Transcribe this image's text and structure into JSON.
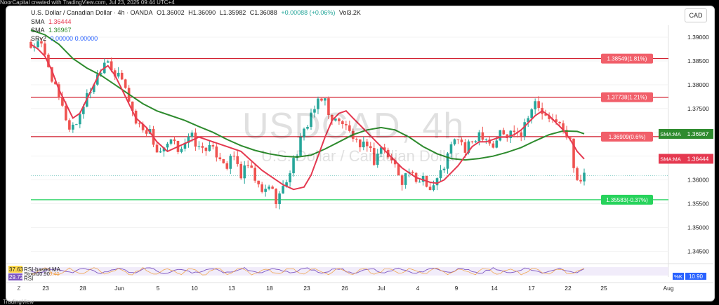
{
  "header": {
    "credit": "NoorCapital created with TradingView.com, Jul 23, 2025 09:44 UTC+4",
    "currency_button": "CAD",
    "footer_logo": "TradingView"
  },
  "legend": {
    "symbol": "U.S. Dollar / Canadian Dollar · 4h · OANDA",
    "o": "O1.36002",
    "h": "H1.36090",
    "l": "L1.35982",
    "c": "C1.36088",
    "chg": "+0.00088 (+0.06%)",
    "vol": "Vol3.2K",
    "sma1_label": "SMA",
    "sma1_value": "1.36444",
    "sma2_label": "SMA",
    "sma2_value": "1.36967",
    "srv_label": "SRv2",
    "srv_values": "0.00000  0.00000"
  },
  "watermark": {
    "big": "USDCAD, 4h",
    "small": "U.S. Dollar / Canadian Dollar"
  },
  "colors": {
    "up": "#26a69a",
    "down": "#ef5350",
    "sma_fast": "#e53950",
    "sma_slow": "#2e8b2e",
    "resistance": "#d11f2e",
    "support": "#1fd15a",
    "rsi": "#7e57c2"
  },
  "chart_data": {
    "type": "candlestick",
    "ylim": [
      1.343,
      1.3925
    ],
    "y_ticks": [
      "1.39000",
      "1.38500",
      "1.38000",
      "1.37500",
      "1.37000",
      "1.36500",
      "1.36000",
      "1.35500",
      "1.35000",
      "1.34500"
    ],
    "x_ticks": [
      "23",
      "28",
      "Jun",
      "5",
      "10",
      "13",
      "18",
      "23",
      "26",
      "Jul",
      "4",
      "9",
      "14",
      "17",
      "22",
      "25",
      "Aug"
    ],
    "levels": [
      {
        "label": "1.38549 (1.81%)",
        "price": 1.38549,
        "kind": "resistance"
      },
      {
        "label": "1.37738 (1.21%)",
        "price": 1.37738,
        "kind": "resistance"
      },
      {
        "label": "1.36909 (0.6%)",
        "price": 1.36909,
        "kind": "resistance"
      },
      {
        "label": "1.35583 (-0.37%)",
        "price": 1.35583,
        "kind": "support"
      }
    ],
    "price_tags": [
      {
        "label": "SMA:MA",
        "value": "1.36967",
        "price": 1.36967,
        "kind": "sma_slow"
      },
      {
        "label": "SMA:MA",
        "value": "1.36444",
        "price": 1.36444,
        "kind": "sma_fast"
      }
    ],
    "sma_fast_path": [
      [
        0,
        1.3885
      ],
      [
        2,
        1.3875
      ],
      [
        4,
        1.386
      ],
      [
        6,
        1.383
      ],
      [
        8,
        1.379
      ],
      [
        10,
        1.376
      ],
      [
        12,
        1.373
      ],
      [
        14,
        1.374
      ],
      [
        16,
        1.377
      ],
      [
        18,
        1.38
      ],
      [
        20,
        1.383
      ],
      [
        22,
        1.384
      ],
      [
        24,
        1.382
      ],
      [
        26,
        1.379
      ],
      [
        28,
        1.376
      ],
      [
        30,
        1.373
      ],
      [
        33,
        1.371
      ],
      [
        36,
        1.368
      ],
      [
        39,
        1.366
      ],
      [
        42,
        1.367
      ],
      [
        45,
        1.368
      ],
      [
        48,
        1.369
      ],
      [
        52,
        1.368
      ],
      [
        56,
        1.367
      ],
      [
        60,
        1.366
      ],
      [
        63,
        1.364
      ],
      [
        66,
        1.362
      ],
      [
        69,
        1.3605
      ],
      [
        72,
        1.359
      ],
      [
        75,
        1.358
      ],
      [
        78,
        1.3585
      ],
      [
        80,
        1.361
      ],
      [
        82,
        1.365
      ],
      [
        84,
        1.369
      ],
      [
        86,
        1.3725
      ],
      [
        88,
        1.374
      ],
      [
        90,
        1.3745
      ],
      [
        92,
        1.373
      ],
      [
        94,
        1.3715
      ],
      [
        96,
        1.37
      ],
      [
        98,
        1.3685
      ],
      [
        100,
        1.367
      ],
      [
        102,
        1.3655
      ],
      [
        104,
        1.364
      ],
      [
        106,
        1.3625
      ],
      [
        108,
        1.3615
      ],
      [
        110,
        1.3605
      ],
      [
        112,
        1.36
      ],
      [
        114,
        1.3595
      ],
      [
        116,
        1.3593
      ],
      [
        118,
        1.36
      ],
      [
        120,
        1.3615
      ],
      [
        122,
        1.363
      ],
      [
        124,
        1.365
      ],
      [
        126,
        1.367
      ],
      [
        128,
        1.368
      ],
      [
        130,
        1.368
      ],
      [
        132,
        1.3685
      ],
      [
        134,
        1.369
      ],
      [
        136,
        1.369
      ],
      [
        138,
        1.3695
      ],
      [
        140,
        1.3705
      ],
      [
        142,
        1.372
      ],
      [
        144,
        1.3735
      ],
      [
        146,
        1.3745
      ],
      [
        148,
        1.3735
      ],
      [
        150,
        1.372
      ],
      [
        152,
        1.3705
      ],
      [
        154,
        1.3685
      ],
      [
        156,
        1.366
      ],
      [
        158,
        1.3644
      ]
    ],
    "sma_slow_path": [
      [
        0,
        1.3915
      ],
      [
        4,
        1.3905
      ],
      [
        8,
        1.3885
      ],
      [
        12,
        1.3855
      ],
      [
        16,
        1.3835
      ],
      [
        20,
        1.382
      ],
      [
        24,
        1.38
      ],
      [
        28,
        1.378
      ],
      [
        32,
        1.376
      ],
      [
        36,
        1.3745
      ],
      [
        40,
        1.3735
      ],
      [
        44,
        1.3725
      ],
      [
        48,
        1.3712
      ],
      [
        52,
        1.37
      ],
      [
        56,
        1.3685
      ],
      [
        60,
        1.3672
      ],
      [
        64,
        1.3662
      ],
      [
        68,
        1.3655
      ],
      [
        72,
        1.365
      ],
      [
        76,
        1.3648
      ],
      [
        80,
        1.3652
      ],
      [
        84,
        1.3665
      ],
      [
        88,
        1.368
      ],
      [
        92,
        1.3695
      ],
      [
        96,
        1.3705
      ],
      [
        100,
        1.371
      ],
      [
        104,
        1.3705
      ],
      [
        108,
        1.369
      ],
      [
        112,
        1.367
      ],
      [
        116,
        1.3655
      ],
      [
        120,
        1.3645
      ],
      [
        124,
        1.3642
      ],
      [
        128,
        1.3645
      ],
      [
        132,
        1.365
      ],
      [
        136,
        1.3658
      ],
      [
        140,
        1.3668
      ],
      [
        144,
        1.3682
      ],
      [
        148,
        1.3695
      ],
      [
        152,
        1.3703
      ],
      [
        156,
        1.3702
      ],
      [
        158,
        1.3697
      ]
    ],
    "close_path": [
      [
        0,
        1.388
      ],
      [
        2,
        1.3885
      ],
      [
        3,
        1.388
      ],
      [
        5,
        1.384
      ],
      [
        7,
        1.379
      ],
      [
        9,
        1.375
      ],
      [
        11,
        1.371
      ],
      [
        13,
        1.372
      ],
      [
        15,
        1.376
      ],
      [
        17,
        1.379
      ],
      [
        19,
        1.382
      ],
      [
        21,
        1.385
      ],
      [
        22,
        1.3855
      ],
      [
        24,
        1.382
      ],
      [
        26,
        1.381
      ],
      [
        28,
        1.377
      ],
      [
        30,
        1.372
      ],
      [
        32,
        1.371
      ],
      [
        34,
        1.37
      ],
      [
        36,
        1.366
      ],
      [
        38,
        1.366
      ],
      [
        40,
        1.368
      ],
      [
        42,
        1.3665
      ],
      [
        44,
        1.368
      ],
      [
        46,
        1.369
      ],
      [
        48,
        1.3665
      ],
      [
        50,
        1.367
      ],
      [
        52,
        1.366
      ],
      [
        54,
        1.365
      ],
      [
        56,
        1.363
      ],
      [
        58,
        1.365
      ],
      [
        60,
        1.361
      ],
      [
        62,
        1.363
      ],
      [
        64,
        1.36
      ],
      [
        66,
        1.357
      ],
      [
        68,
        1.359
      ],
      [
        70,
        1.356
      ],
      [
        72,
        1.358
      ],
      [
        74,
        1.362
      ],
      [
        76,
        1.366
      ],
      [
        78,
        1.37
      ],
      [
        80,
        1.374
      ],
      [
        82,
        1.376
      ],
      [
        84,
        1.377
      ],
      [
        86,
        1.372
      ],
      [
        88,
        1.373
      ],
      [
        90,
        1.371
      ],
      [
        92,
        1.369
      ],
      [
        94,
        1.366
      ],
      [
        96,
        1.368
      ],
      [
        98,
        1.364
      ],
      [
        100,
        1.367
      ],
      [
        102,
        1.365
      ],
      [
        104,
        1.363
      ],
      [
        106,
        1.36
      ],
      [
        108,
        1.362
      ],
      [
        110,
        1.359
      ],
      [
        112,
        1.361
      ],
      [
        114,
        1.358
      ],
      [
        116,
        1.36
      ],
      [
        118,
        1.363
      ],
      [
        120,
        1.367
      ],
      [
        122,
        1.369
      ],
      [
        124,
        1.366
      ],
      [
        126,
        1.368
      ],
      [
        128,
        1.37
      ],
      [
        130,
        1.369
      ],
      [
        132,
        1.367
      ],
      [
        134,
        1.37
      ],
      [
        136,
        1.369
      ],
      [
        138,
        1.371
      ],
      [
        140,
        1.37
      ],
      [
        142,
        1.374
      ],
      [
        144,
        1.376
      ],
      [
        146,
        1.374
      ],
      [
        148,
        1.372
      ],
      [
        150,
        1.373
      ],
      [
        152,
        1.37
      ],
      [
        154,
        1.368
      ],
      [
        155,
        1.3635
      ],
      [
        156,
        1.3603
      ],
      [
        157,
        1.3601
      ],
      [
        158,
        1.3609
      ]
    ],
    "candle_count": 159,
    "subchart": {
      "rsi_label": "RSI-based MA",
      "rsi_value": "37.63",
      "rsi_short": "RSI",
      "rsi_value2": "29.72",
      "stoch_label": "Stoch",
      "stoch_k": "10.90",
      "stoch_d": "9.40",
      "k_tag": "%K",
      "k_value": "10.90"
    }
  }
}
